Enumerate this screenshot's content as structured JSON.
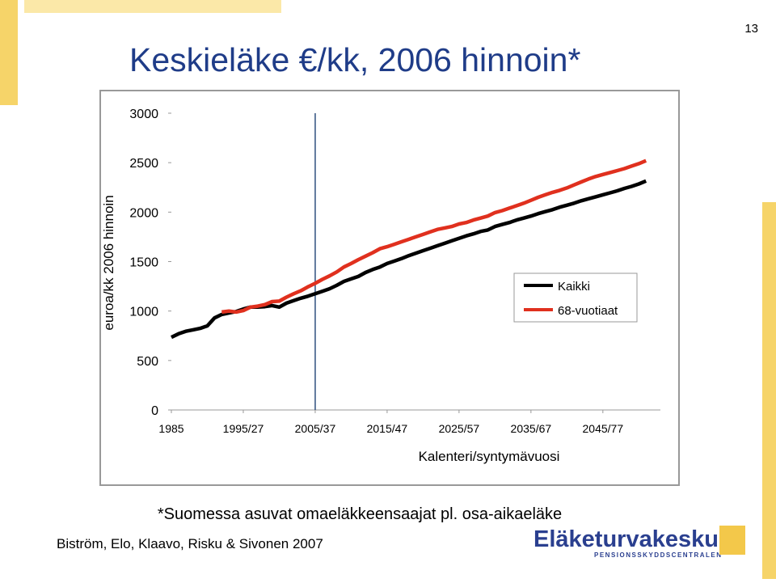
{
  "page_number": "13",
  "title": "Keskieläke €/kk, 2006 hinnoin*",
  "chart_data": {
    "type": "line",
    "x_label": "Kalenteri/syntymävuosi",
    "y_label": "euroa/kk 2006 hinnoin",
    "x": [
      1985,
      1986,
      1987,
      1988,
      1989,
      1990,
      1991,
      1992,
      1993,
      1994,
      1995,
      1996,
      1997,
      1998,
      1999,
      2000,
      2001,
      2002,
      2003,
      2004,
      2005,
      2006,
      2007,
      2008,
      2009,
      2010,
      2011,
      2012,
      2013,
      2014,
      2015,
      2016,
      2017,
      2018,
      2019,
      2020,
      2021,
      2022,
      2023,
      2024,
      2025,
      2026,
      2027,
      2028,
      2029,
      2030,
      2031,
      2032,
      2033,
      2034,
      2035,
      2036,
      2037,
      2038,
      2039,
      2040,
      2041,
      2042,
      2043,
      2044,
      2045,
      2046,
      2047,
      2048,
      2049,
      2050,
      2051
    ],
    "series": [
      {
        "name": "Kaikki",
        "color": "#000000",
        "values": [
          735,
          770,
          795,
          810,
          825,
          850,
          930,
          965,
          980,
          995,
          1020,
          1040,
          1040,
          1045,
          1055,
          1040,
          1080,
          1105,
          1130,
          1150,
          1175,
          1200,
          1225,
          1260,
          1300,
          1325,
          1350,
          1390,
          1420,
          1445,
          1480,
          1505,
          1530,
          1560,
          1585,
          1610,
          1635,
          1660,
          1685,
          1710,
          1735,
          1760,
          1780,
          1805,
          1820,
          1855,
          1875,
          1895,
          1920,
          1940,
          1960,
          1985,
          2005,
          2025,
          2050,
          2070,
          2090,
          2115,
          2135,
          2155,
          2175,
          2195,
          2215,
          2240,
          2260,
          2285,
          2315
        ]
      },
      {
        "name": "68-vuotiaat",
        "color": "#e0301e",
        "values": [
          null,
          null,
          null,
          null,
          null,
          null,
          null,
          990,
          1000,
          990,
          1005,
          1040,
          1050,
          1065,
          1095,
          1100,
          1140,
          1175,
          1205,
          1245,
          1280,
          1320,
          1355,
          1395,
          1445,
          1480,
          1520,
          1555,
          1590,
          1630,
          1650,
          1675,
          1700,
          1725,
          1750,
          1775,
          1800,
          1825,
          1840,
          1855,
          1880,
          1895,
          1920,
          1940,
          1960,
          1995,
          2015,
          2040,
          2065,
          2090,
          2120,
          2150,
          2175,
          2200,
          2220,
          2245,
          2275,
          2305,
          2335,
          2360,
          2380,
          2400,
          2420,
          2440,
          2465,
          2490,
          2520
        ]
      }
    ],
    "xlim": [
      1985,
      2053
    ],
    "xticks": [
      1985,
      {
        "value": 1995,
        "label": "1995/27"
      },
      {
        "value": 2005,
        "label": "2005/37"
      },
      {
        "value": 2015,
        "label": "2015/47"
      },
      {
        "value": 2025,
        "label": "2025/57"
      },
      {
        "value": 2035,
        "label": "2035/67"
      },
      {
        "value": 2045,
        "label": "2045/77"
      }
    ],
    "ylim": [
      0,
      3000
    ],
    "yticks": [
      0,
      500,
      1000,
      1500,
      2000,
      2500,
      3000
    ],
    "vline": 2005,
    "vline_color": "#2f4f7f",
    "grid": false,
    "legend": "right"
  },
  "footnote": "*Suomessa asuvat omaeläkkeensaajat pl. osa-aikaeläke",
  "authors": "Biström, Elo, Klaavo, Risku & Sivonen 2007",
  "logo": {
    "name": "Eläketurvakeskus",
    "subtitle": "PENSIONSSKYDDSCENTRALEN"
  }
}
